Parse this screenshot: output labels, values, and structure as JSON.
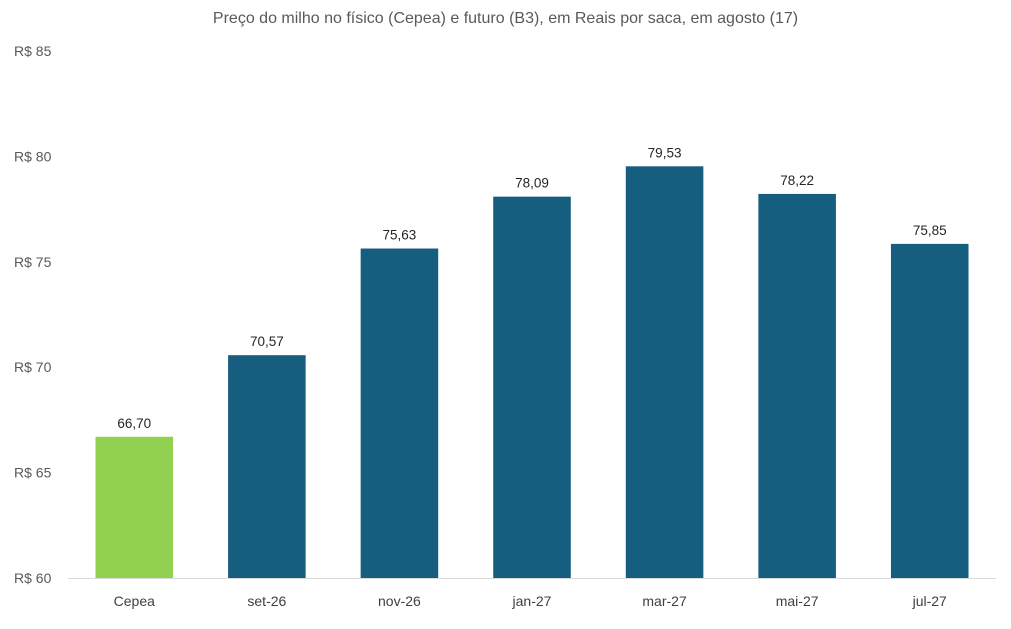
{
  "chart_data": {
    "type": "bar",
    "title": "Preço do milho no físico (Cepea) e futuro (B3), em Reais por saca, em agosto (17)",
    "categories": [
      "Cepea",
      "set-26",
      "nov-26",
      "jan-27",
      "mar-27",
      "mai-27",
      "jul-27"
    ],
    "values": [
      66.7,
      70.57,
      75.63,
      78.09,
      79.53,
      78.22,
      75.85
    ],
    "value_labels": [
      "66,70",
      "70,57",
      "75,63",
      "78,09",
      "79,53",
      "78,22",
      "75,85"
    ],
    "bar_colors": [
      "#92D050",
      "#155E80",
      "#155E80",
      "#155E80",
      "#155E80",
      "#155E80",
      "#155E80"
    ],
    "ylim": [
      60,
      85
    ],
    "yticks": [
      60,
      65,
      70,
      75,
      80,
      85
    ],
    "ytick_labels": [
      "R$ 60",
      "R$ 65",
      "R$ 70",
      "R$ 75",
      "R$ 80",
      "R$ 85"
    ],
    "xlabel": "",
    "ylabel": "",
    "grid": false,
    "legend": "none"
  }
}
